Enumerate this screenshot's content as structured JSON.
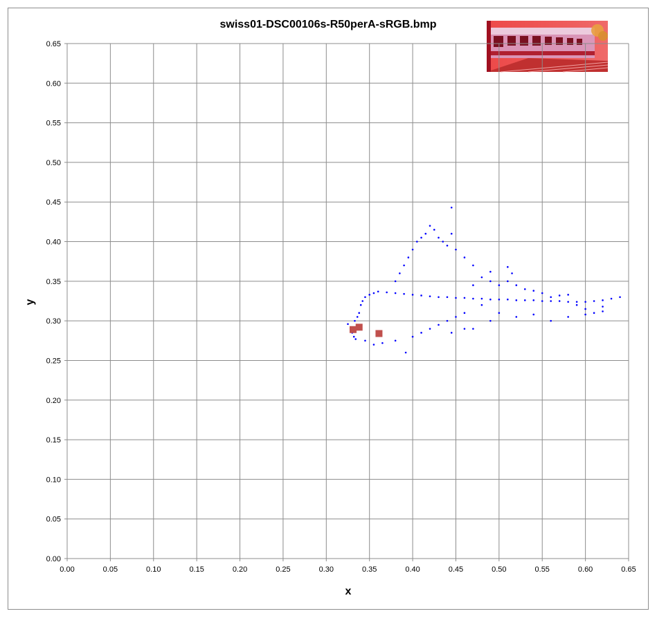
{
  "chart_data": {
    "type": "scatter",
    "title": "swiss01-DSC00106s-R50perA-sRGB.bmp",
    "xlabel": "x",
    "ylabel": "y",
    "xlim": [
      0.0,
      0.65
    ],
    "ylim": [
      0.0,
      0.65
    ],
    "x_ticks": [
      "0.00",
      "0.05",
      "0.10",
      "0.15",
      "0.20",
      "0.25",
      "0.30",
      "0.35",
      "0.40",
      "0.45",
      "0.50",
      "0.55",
      "0.60",
      "0.65"
    ],
    "y_ticks": [
      "0.00",
      "0.05",
      "0.10",
      "0.15",
      "0.20",
      "0.25",
      "0.30",
      "0.35",
      "0.40",
      "0.45",
      "0.50",
      "0.55",
      "0.60",
      "0.65"
    ],
    "grid": true,
    "legend": "none",
    "series": [
      {
        "marker": "dot",
        "color": "#0000ff",
        "points": [
          [
            0.325,
            0.296
          ],
          [
            0.328,
            0.29
          ],
          [
            0.33,
            0.285
          ],
          [
            0.332,
            0.28
          ],
          [
            0.334,
            0.277
          ],
          [
            0.333,
            0.3
          ],
          [
            0.336,
            0.305
          ],
          [
            0.338,
            0.31
          ],
          [
            0.34,
            0.32
          ],
          [
            0.342,
            0.325
          ],
          [
            0.345,
            0.33
          ],
          [
            0.35,
            0.333
          ],
          [
            0.355,
            0.335
          ],
          [
            0.36,
            0.337
          ],
          [
            0.37,
            0.336
          ],
          [
            0.38,
            0.335
          ],
          [
            0.39,
            0.334
          ],
          [
            0.4,
            0.333
          ],
          [
            0.41,
            0.332
          ],
          [
            0.42,
            0.331
          ],
          [
            0.43,
            0.33
          ],
          [
            0.44,
            0.33
          ],
          [
            0.45,
            0.329
          ],
          [
            0.46,
            0.329
          ],
          [
            0.47,
            0.328
          ],
          [
            0.48,
            0.328
          ],
          [
            0.49,
            0.327
          ],
          [
            0.5,
            0.327
          ],
          [
            0.51,
            0.327
          ],
          [
            0.52,
            0.326
          ],
          [
            0.53,
            0.326
          ],
          [
            0.54,
            0.326
          ],
          [
            0.55,
            0.325
          ],
          [
            0.56,
            0.325
          ],
          [
            0.57,
            0.325
          ],
          [
            0.58,
            0.324
          ],
          [
            0.59,
            0.324
          ],
          [
            0.6,
            0.324
          ],
          [
            0.61,
            0.325
          ],
          [
            0.62,
            0.326
          ],
          [
            0.63,
            0.328
          ],
          [
            0.64,
            0.33
          ],
          [
            0.345,
            0.275
          ],
          [
            0.355,
            0.27
          ],
          [
            0.365,
            0.272
          ],
          [
            0.38,
            0.275
          ],
          [
            0.392,
            0.26
          ],
          [
            0.4,
            0.28
          ],
          [
            0.41,
            0.285
          ],
          [
            0.42,
            0.29
          ],
          [
            0.43,
            0.295
          ],
          [
            0.44,
            0.3
          ],
          [
            0.45,
            0.305
          ],
          [
            0.46,
            0.31
          ],
          [
            0.38,
            0.35
          ],
          [
            0.385,
            0.36
          ],
          [
            0.39,
            0.37
          ],
          [
            0.395,
            0.38
          ],
          [
            0.4,
            0.39
          ],
          [
            0.405,
            0.4
          ],
          [
            0.41,
            0.405
          ],
          [
            0.415,
            0.41
          ],
          [
            0.42,
            0.42
          ],
          [
            0.425,
            0.415
          ],
          [
            0.43,
            0.405
          ],
          [
            0.435,
            0.4
          ],
          [
            0.44,
            0.395
          ],
          [
            0.445,
            0.443
          ],
          [
            0.445,
            0.41
          ],
          [
            0.45,
            0.39
          ],
          [
            0.46,
            0.38
          ],
          [
            0.47,
            0.37
          ],
          [
            0.48,
            0.355
          ],
          [
            0.49,
            0.35
          ],
          [
            0.5,
            0.345
          ],
          [
            0.51,
            0.35
          ],
          [
            0.52,
            0.345
          ],
          [
            0.53,
            0.34
          ],
          [
            0.54,
            0.338
          ],
          [
            0.55,
            0.335
          ],
          [
            0.56,
            0.33
          ],
          [
            0.57,
            0.332
          ],
          [
            0.58,
            0.333
          ],
          [
            0.59,
            0.32
          ],
          [
            0.6,
            0.315
          ],
          [
            0.61,
            0.31
          ],
          [
            0.62,
            0.318
          ],
          [
            0.5,
            0.31
          ],
          [
            0.52,
            0.305
          ],
          [
            0.54,
            0.308
          ],
          [
            0.56,
            0.3
          ],
          [
            0.58,
            0.305
          ],
          [
            0.6,
            0.308
          ],
          [
            0.62,
            0.312
          ],
          [
            0.51,
            0.368
          ],
          [
            0.515,
            0.36
          ],
          [
            0.49,
            0.362
          ],
          [
            0.47,
            0.345
          ],
          [
            0.48,
            0.32
          ],
          [
            0.49,
            0.3
          ],
          [
            0.47,
            0.29
          ],
          [
            0.46,
            0.29
          ],
          [
            0.445,
            0.285
          ]
        ]
      },
      {
        "marker": "square",
        "color": "#c0504d",
        "points": [
          [
            0.331,
            0.289
          ],
          [
            0.338,
            0.292
          ],
          [
            0.361,
            0.284
          ]
        ]
      }
    ]
  },
  "thumbnail": {
    "tint": "#e03030",
    "icon": "train-photo-thumbnail"
  }
}
